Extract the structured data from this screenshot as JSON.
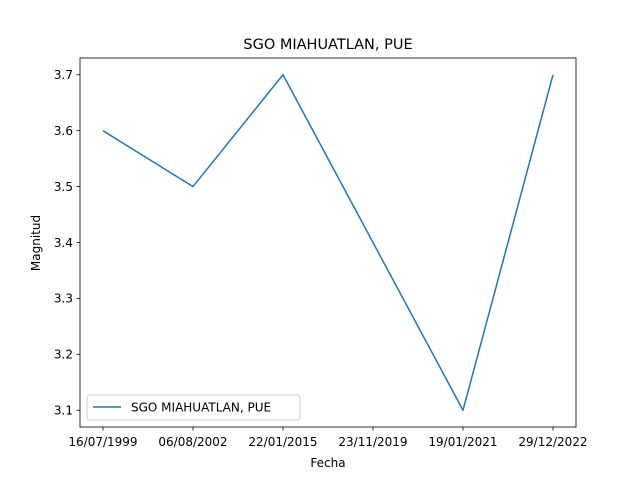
{
  "chart_data": {
    "type": "line",
    "title": "SGO MIAHUATLAN, PUE",
    "xlabel": "Fecha",
    "ylabel": "Magnitud",
    "categories": [
      "16/07/1999",
      "06/08/2002",
      "22/01/2015",
      "23/11/2019",
      "19/01/2021",
      "29/12/2022"
    ],
    "series": [
      {
        "name": "SGO MIAHUATLAN, PUE",
        "values": [
          3.6,
          3.5,
          3.7,
          3.4,
          3.1,
          3.7
        ],
        "color": "#1f77b4"
      }
    ],
    "ylim": [
      3.07,
      3.73
    ],
    "yticks": [
      3.1,
      3.2,
      3.3,
      3.4,
      3.5,
      3.6,
      3.7
    ],
    "grid": false,
    "legend_position": "lower-left"
  }
}
